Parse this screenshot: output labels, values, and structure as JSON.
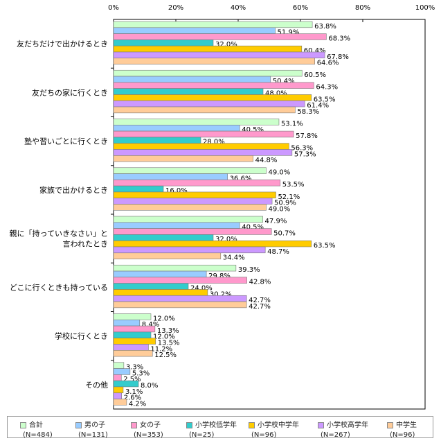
{
  "chart_data": {
    "type": "bar",
    "orientation": "horizontal",
    "xlim": [
      0,
      100
    ],
    "xticks": [
      "0%",
      "20%",
      "40%",
      "60%",
      "80%",
      "100%"
    ],
    "categories": [
      "友だちだけで出かけるとき",
      "友だちの家に行くとき",
      "塾や習いごとに行くとき",
      "家族で出かけるとき",
      "親に「持っていきなさい」と\n言われたとき",
      "どこに行くときも持っている",
      "学校に行くとき",
      "その他"
    ],
    "series": [
      {
        "name": "合計",
        "n": "(N=484)",
        "color": "#ccffcc",
        "values": [
          63.8,
          60.5,
          53.1,
          49.0,
          47.9,
          39.3,
          12.0,
          3.3
        ]
      },
      {
        "name": "男の子",
        "n": "(N=131)",
        "color": "#99ccff",
        "values": [
          51.9,
          50.4,
          40.5,
          36.6,
          40.5,
          29.8,
          8.4,
          5.3
        ]
      },
      {
        "name": "女の子",
        "n": "(N=353)",
        "color": "#ff99cc",
        "values": [
          68.3,
          64.3,
          57.8,
          53.5,
          50.7,
          42.8,
          13.3,
          2.5
        ]
      },
      {
        "name": "小学校低学年",
        "n": "(N=25)",
        "color": "#33cccc",
        "values": [
          32.0,
          48.0,
          28.0,
          16.0,
          32.0,
          24.0,
          12.0,
          8.0
        ]
      },
      {
        "name": "小学校中学年",
        "n": "(N=96)",
        "color": "#ffcc00",
        "values": [
          60.4,
          63.5,
          56.3,
          52.1,
          63.5,
          30.2,
          13.5,
          3.1
        ]
      },
      {
        "name": "小学校高学年",
        "n": "(N=267)",
        "color": "#cc99ff",
        "values": [
          67.8,
          61.4,
          57.3,
          50.9,
          48.7,
          42.7,
          11.2,
          2.6
        ]
      },
      {
        "name": "中学生",
        "n": "(N=96)",
        "color": "#ffcc99",
        "values": [
          64.6,
          58.3,
          44.8,
          49.0,
          34.4,
          42.7,
          12.5,
          4.2
        ]
      }
    ],
    "legend_position": "bottom"
  }
}
